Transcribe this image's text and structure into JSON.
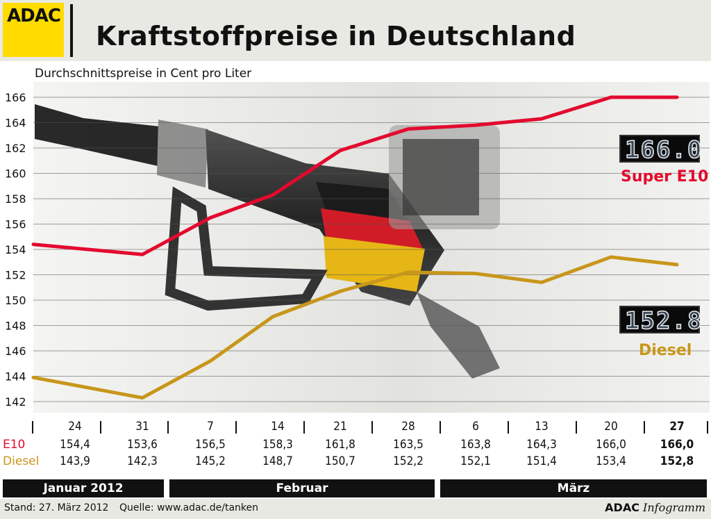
{
  "header": {
    "logo_text": "ADAC",
    "title": "Kraftstoffpreise in Deutschland"
  },
  "chart_data": {
    "type": "line",
    "title": "Kraftstoffpreise in Deutschland",
    "ylabel": "Durchschnittspreise in Cent pro Liter",
    "xlabel": "",
    "ylim": [
      142,
      166
    ],
    "yticks": [
      142,
      144,
      146,
      148,
      150,
      152,
      154,
      156,
      158,
      160,
      162,
      164,
      166
    ],
    "ytick_labels": [
      "142",
      "144",
      "146",
      "148",
      "150",
      "152",
      "154",
      "156",
      "158",
      "160",
      "162",
      "164",
      "166"
    ],
    "categories": [
      "24",
      "31",
      "7",
      "14",
      "21",
      "28",
      "6",
      "13",
      "20",
      "27"
    ],
    "grid": true,
    "series": [
      {
        "name": "Super E10",
        "color": "#e30a2e",
        "values": [
          154.4,
          153.6,
          156.5,
          158.3,
          161.8,
          163.5,
          163.8,
          164.3,
          166.0,
          166.0
        ]
      },
      {
        "name": "Diesel",
        "color": "#c8961a",
        "values": [
          143.9,
          142.3,
          145.2,
          148.7,
          150.7,
          152.2,
          152.1,
          151.4,
          153.4,
          152.8
        ]
      }
    ],
    "annotations": [
      {
        "series": "Super E10",
        "display": "166.0",
        "label": "Super E10"
      },
      {
        "series": "Diesel",
        "display": "152.8",
        "label": "Diesel"
      }
    ]
  },
  "table": {
    "row_labels": [
      "E10",
      "Diesel"
    ],
    "dates": [
      "24",
      "31",
      "7",
      "14",
      "21",
      "28",
      "6",
      "13",
      "20",
      "27"
    ],
    "e10": [
      "154,4",
      "153,6",
      "156,5",
      "158,3",
      "161,8",
      "163,5",
      "163,8",
      "164,3",
      "166,0",
      "166,0"
    ],
    "diesel": [
      "143,9",
      "142,3",
      "145,2",
      "148,7",
      "150,7",
      "152,2",
      "152,1",
      "151,4",
      "153,4",
      "152,8"
    ]
  },
  "months": [
    "Januar 2012",
    "Februar",
    "März"
  ],
  "footer": {
    "stand": "Stand: 27. März 2012",
    "quelle": "Quelle: www.adac.de/tanken",
    "brand_bold": "ADAC",
    "brand_italic": "Infogramm"
  },
  "colors": {
    "e10": "#e30a2e",
    "diesel": "#c8961a",
    "logo_yellow": "#ffdb00",
    "band_gray": "#e9e9e3"
  }
}
